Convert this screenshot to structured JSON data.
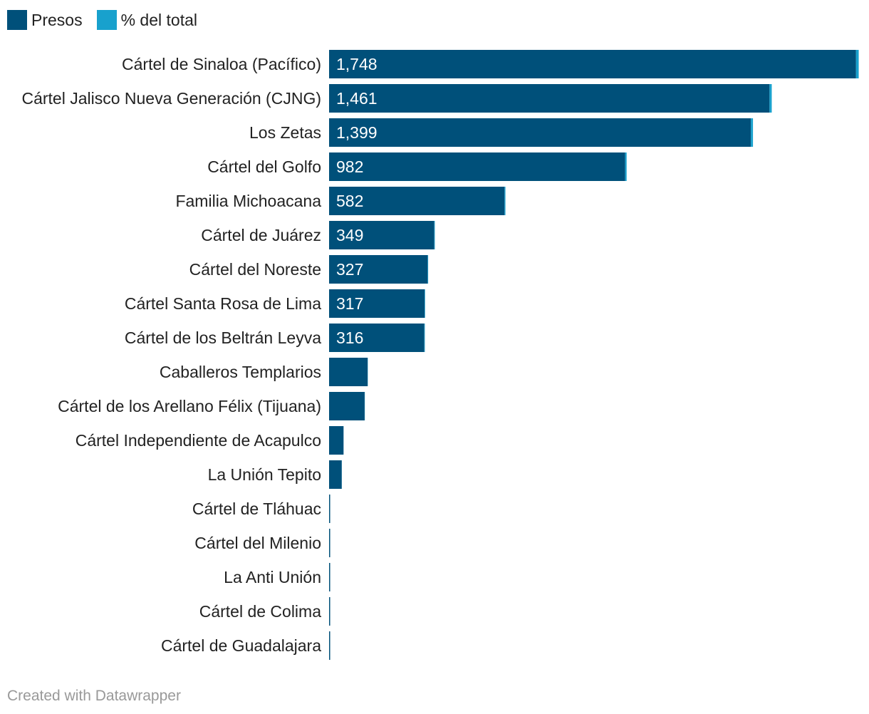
{
  "chart_data": {
    "type": "bar",
    "orientation": "horizontal",
    "stacked": true,
    "categories": [
      "Cártel de Sinaloa (Pacífico)",
      "Cártel Jalisco Nueva Generación (CJNG)",
      "Los Zetas",
      "Cártel del Golfo",
      "Familia Michoacana",
      "Cártel de Juárez",
      "Cártel del Noreste",
      "Cártel Santa Rosa de Lima",
      "Cártel de los Beltrán Leyva",
      "Caballeros Templarios",
      "Cártel de los Arellano Félix (Tijuana)",
      "Cártel Independiente de Acapulco",
      "La Unión Tepito",
      "Cártel de Tláhuac",
      "Cártel del Milenio",
      "La Anti Unión",
      "Cártel de Colima",
      "Cártel de Guadalajara"
    ],
    "series": [
      {
        "name": "Presos",
        "color": "#00507a",
        "values": [
          1748,
          1461,
          1399,
          982,
          582,
          349,
          327,
          317,
          316,
          128,
          118,
          48,
          42,
          3,
          3,
          3,
          3,
          3
        ],
        "labels": [
          "1,748",
          "1,461",
          "1,399",
          "982",
          "582",
          "349",
          "327",
          "317",
          "316",
          "",
          "",
          "",
          "",
          "",
          "",
          "",
          "",
          ""
        ]
      },
      {
        "name": "% del total",
        "color": "#18a1cd",
        "values": [
          12.5,
          10.4,
          10,
          7,
          4.2,
          2.5,
          2.3,
          2.3,
          2.3,
          0.9,
          0.8,
          0.3,
          0.3,
          0,
          0,
          0,
          0,
          0
        ]
      }
    ],
    "xlim": [
      0,
      1765
    ],
    "grid": false,
    "legend_position": "top-left"
  },
  "footer": {
    "credit": "Created with Datawrapper"
  }
}
